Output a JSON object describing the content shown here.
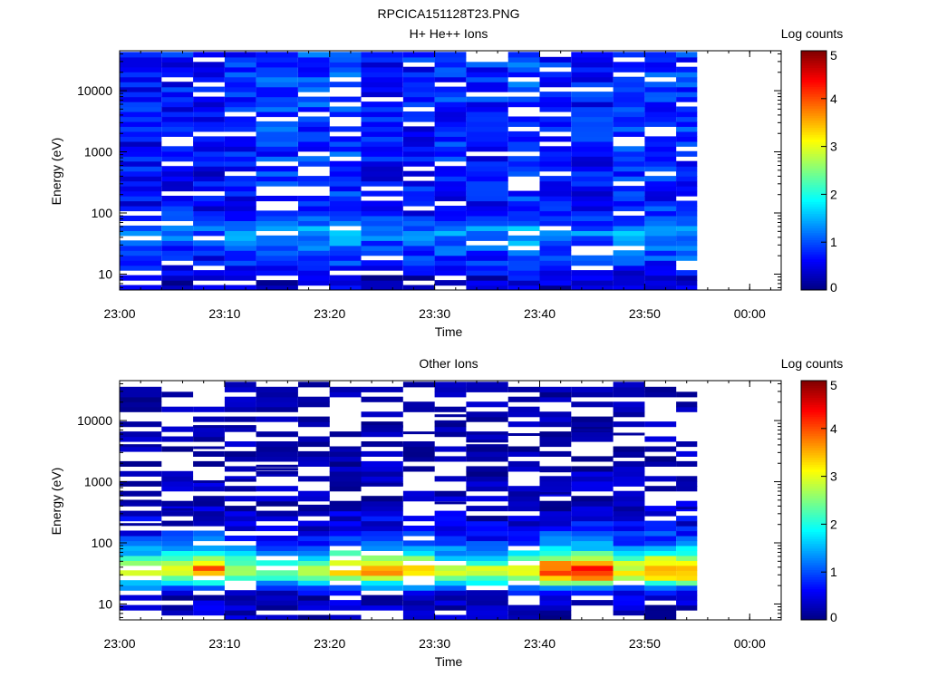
{
  "title": "RPCICA151128T23.PNG",
  "colorbar": {
    "label": "Log counts",
    "range": [
      0,
      5
    ],
    "ticks": [
      "0",
      "1",
      "2",
      "3",
      "4",
      "5"
    ]
  },
  "colormap": [
    "#000080",
    "#0000ff",
    "#0080ff",
    "#00ffff",
    "#80ff80",
    "#ffff00",
    "#ff8000",
    "#ff0000",
    "#800000"
  ],
  "chart_data": [
    {
      "type": "heatmap",
      "title": "H+ He++ Ions",
      "xlabel": "Time",
      "ylabel": "Energy (eV)",
      "yscale": "log",
      "ylim": [
        5.5,
        45000
      ],
      "xlim": [
        "23:00",
        "00:03"
      ],
      "xticks": [
        "23:00",
        "23:10",
        "23:20",
        "23:30",
        "23:40",
        "23:50",
        "00:00"
      ],
      "yticks": [
        "10",
        "100",
        "1000",
        "10000"
      ],
      "z_label": "Log counts",
      "z_range": [
        0,
        5
      ],
      "column_times": [
        "23:00",
        "23:04",
        "23:07",
        "23:10",
        "23:13",
        "23:17",
        "23:20",
        "23:23",
        "23:27",
        "23:30",
        "23:33",
        "23:37",
        "23:40",
        "23:43",
        "23:47",
        "23:50",
        "23:53"
      ],
      "column_end": "23:55",
      "energy_rows": 48,
      "energy_range": [
        5.5,
        43000
      ],
      "band_profile": [
        {
          "energy": 8,
          "log_counts": 0.35
        },
        {
          "energy": 20,
          "log_counts": 0.9
        },
        {
          "energy": 35,
          "log_counts": 1.1
        },
        {
          "energy": 50,
          "log_counts": 1.4
        },
        {
          "energy": 70,
          "log_counts": 0.9
        },
        {
          "energy": 150,
          "log_counts": 0.7
        },
        {
          "energy": 1000,
          "log_counts": 0.75
        },
        {
          "energy": 10000,
          "log_counts": 0.8
        },
        {
          "energy": 40000,
          "log_counts": 0.8
        }
      ],
      "missing_fraction": 0.13,
      "seed": 7
    },
    {
      "type": "heatmap",
      "title": "Other Ions",
      "xlabel": "Time",
      "ylabel": "Energy (eV)",
      "yscale": "log",
      "ylim": [
        5.5,
        45000
      ],
      "xlim": [
        "23:00",
        "00:03"
      ],
      "xticks": [
        "23:00",
        "23:10",
        "23:20",
        "23:30",
        "23:40",
        "23:50",
        "00:00"
      ],
      "yticks": [
        "10",
        "100",
        "1000",
        "10000"
      ],
      "z_label": "Log counts",
      "z_range": [
        0,
        5
      ],
      "column_times": [
        "23:00",
        "23:04",
        "23:07",
        "23:10",
        "23:13",
        "23:17",
        "23:20",
        "23:23",
        "23:27",
        "23:30",
        "23:33",
        "23:37",
        "23:40",
        "23:43",
        "23:47",
        "23:50",
        "23:53"
      ],
      "column_end": "23:55",
      "energy_rows": 48,
      "energy_range": [
        5.5,
        43000
      ],
      "band_profile": [
        {
          "energy": 9,
          "log_counts": 0.25
        },
        {
          "energy": 14,
          "log_counts": 0.4
        },
        {
          "energy": 20,
          "log_counts": 1.4
        },
        {
          "energy": 27,
          "log_counts": 2.8
        },
        {
          "energy": 35,
          "log_counts": 3.6
        },
        {
          "energy": 45,
          "log_counts": 3.0
        },
        {
          "energy": 60,
          "log_counts": 2.2
        },
        {
          "energy": 100,
          "log_counts": 1.0
        },
        {
          "energy": 200,
          "log_counts": 0.5
        },
        {
          "energy": 500,
          "log_counts": 0.2
        },
        {
          "energy": 45000,
          "log_counts": 0.05
        }
      ],
      "high_energy_lines": [
        {
          "time": "23:00",
          "energies": [
            8800,
            3900,
            480,
            200
          ]
        },
        {
          "time": "23:04",
          "energies": [
            430,
            350
          ]
        },
        {
          "time": "23:07",
          "energies": [
            8000,
            3600,
            1000
          ]
        },
        {
          "time": "23:10",
          "energies": [
            8000,
            1050,
            730
          ]
        },
        {
          "time": "23:13",
          "energies": [
            5900,
            1800,
            1600,
            1400
          ]
        },
        {
          "time": "23:17",
          "energies": [
            400
          ]
        },
        {
          "time": "23:20",
          "energies": [
            3600
          ]
        },
        {
          "time": "23:23",
          "energies": [
            8000,
            4000,
            900
          ]
        },
        {
          "time": "23:27",
          "energies": [
            6300,
            2300
          ]
        },
        {
          "time": "23:30",
          "energies": [
            12000,
            9600,
            450
          ]
        },
        {
          "time": "23:33",
          "energies": [
            6200,
            4600,
            3900
          ]
        },
        {
          "time": "23:37",
          "energies": [
            5900
          ]
        },
        {
          "time": "23:40",
          "energies": [
            1500,
            650
          ]
        },
        {
          "time": "23:43",
          "energies": [
            7000
          ]
        },
        {
          "time": "23:47",
          "energies": [
            6000,
            2600
          ]
        },
        {
          "time": "23:50",
          "energies": [
            26000
          ]
        },
        {
          "time": "23:53",
          "energies": [
            370
          ]
        }
      ],
      "missing_fraction": 0.18,
      "seed": 19
    }
  ]
}
